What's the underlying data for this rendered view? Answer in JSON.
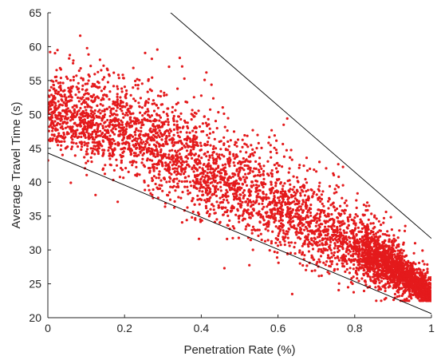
{
  "chart_data": {
    "type": "scatter",
    "title": "",
    "xlabel": "Penetration Rate (%)",
    "ylabel": "Average Travel Time (s)",
    "xlim": [
      0,
      1
    ],
    "ylim": [
      20,
      65
    ],
    "xticks": [
      0,
      0.2,
      0.4,
      0.6,
      0.8,
      1
    ],
    "xtick_labels": [
      "0",
      "0.2",
      "0.4",
      "0.6",
      "0.8",
      "1"
    ],
    "yticks": [
      20,
      25,
      30,
      35,
      40,
      45,
      50,
      55,
      60,
      65
    ],
    "ytick_labels": [
      "20",
      "25",
      "30",
      "35",
      "40",
      "45",
      "50",
      "55",
      "60",
      "65"
    ],
    "grid": false,
    "marker_color": "#e41a1c",
    "line_color": "#000000",
    "lines": [
      {
        "x": [
          0.3,
          1.0
        ],
        "y": [
          66.0,
          31.7
        ]
      },
      {
        "x": [
          0.0,
          1.0
        ],
        "y": [
          44.3,
          20.6
        ]
      }
    ],
    "point_cloud": {
      "count": 4800,
      "trend": {
        "x": [
          0,
          0.2,
          0.4,
          0.6,
          0.8,
          0.9,
          1.0
        ],
        "y": [
          50.5,
          47.8,
          42.0,
          36.5,
          30.5,
          27.5,
          23.5
        ]
      },
      "spread": {
        "x": [
          0,
          0.2,
          0.4,
          0.6,
          0.8,
          1.0
        ],
        "y": [
          2.6,
          3.4,
          3.6,
          3.2,
          2.5,
          0.9
        ]
      }
    }
  }
}
